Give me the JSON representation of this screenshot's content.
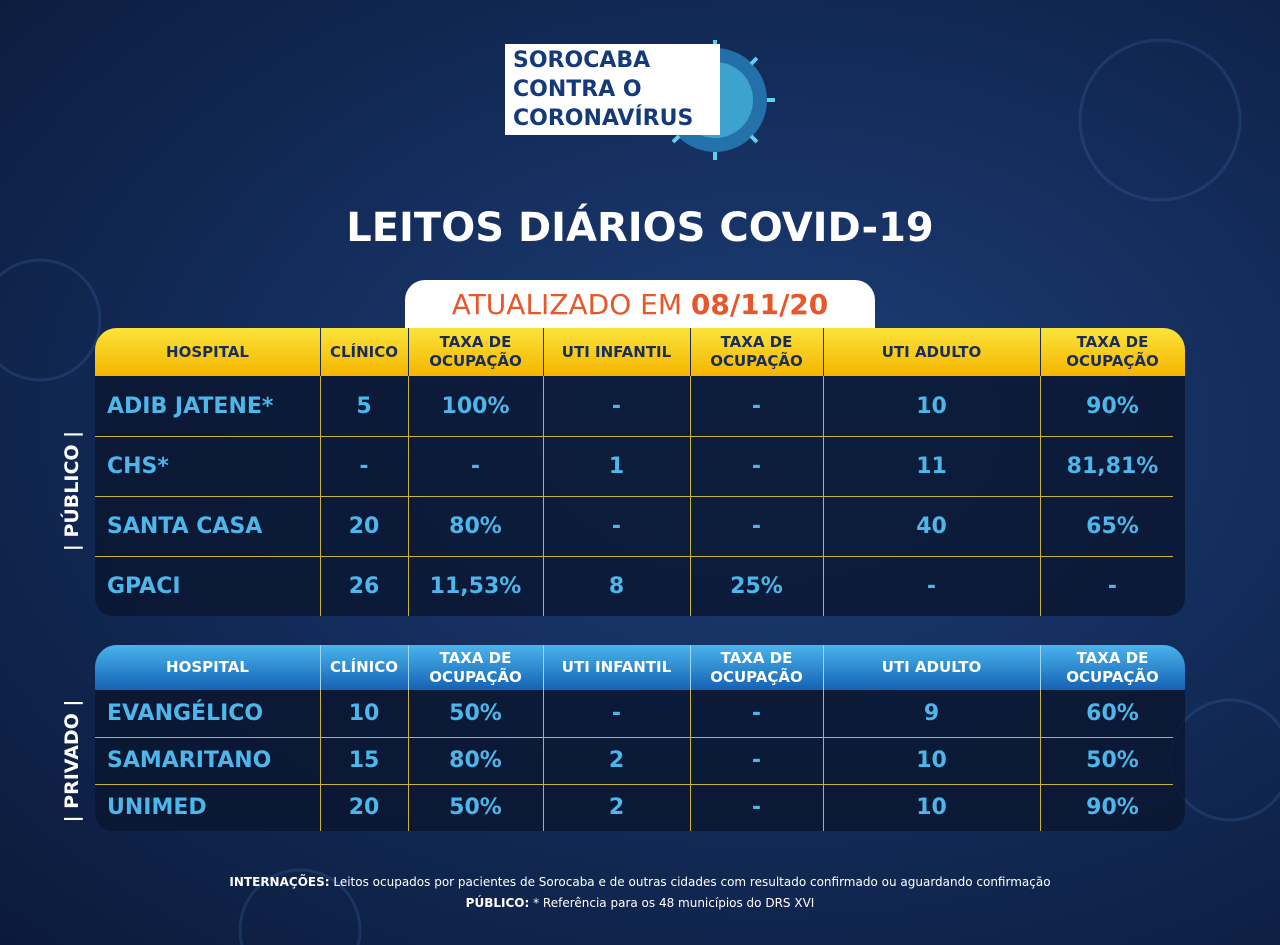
{
  "logo": [
    "SOROCABA",
    "CONTRA O",
    "CORONAVÍRUS"
  ],
  "title": "LEITOS DIÁRIOS COVID-19",
  "updated": {
    "label": "ATUALIZADO EM",
    "date": "08/11/20"
  },
  "public": {
    "side_label": "| PÚBLICO |",
    "header": [
      "HOSPITAL",
      "CLÍNICO",
      "TAXA DE OCUPAÇÃO",
      "UTI INFANTIL",
      "TAXA DE OCUPAÇÃO",
      "UTI ADULTO",
      "TAXA DE OCUPAÇÃO"
    ],
    "rows": [
      [
        "ADIB JATENE*",
        "5",
        "100%",
        "-",
        "-",
        "10",
        "90%"
      ],
      [
        "CHS*",
        "-",
        "-",
        "1",
        "-",
        "11",
        "81,81%"
      ],
      [
        "SANTA CASA",
        "20",
        "80%",
        "-",
        "-",
        "40",
        "65%"
      ],
      [
        "GPACI",
        "26",
        "11,53%",
        "8",
        "25%",
        "-",
        "-"
      ]
    ]
  },
  "private": {
    "side_label": "| PRIVADO |",
    "header": [
      "HOSPITAL",
      "CLÍNICO",
      "TAXA DE OCUPAÇÃO",
      "UTI INFANTIL",
      "TAXA DE OCUPAÇÃO",
      "UTI ADULTO",
      "TAXA DE OCUPAÇÃO"
    ],
    "rows": [
      [
        "EVANGÉLICO",
        "10",
        "50%",
        "-",
        "-",
        "9",
        "60%"
      ],
      [
        "SAMARITANO",
        "15",
        "80%",
        "2",
        "-",
        "10",
        "50%"
      ],
      [
        "UNIMED",
        "20",
        "50%",
        "2",
        "-",
        "10",
        "90%"
      ]
    ]
  },
  "notes": [
    {
      "label": "INTERNAÇÕES:",
      "text": "Leitos ocupados por pacientes de Sorocaba e de outras cidades com resultado confirmado ou aguardando confirmação"
    },
    {
      "label": "PÚBLICO:",
      "text": "* Referência para os 48 municípios do DRS XVI"
    }
  ]
}
